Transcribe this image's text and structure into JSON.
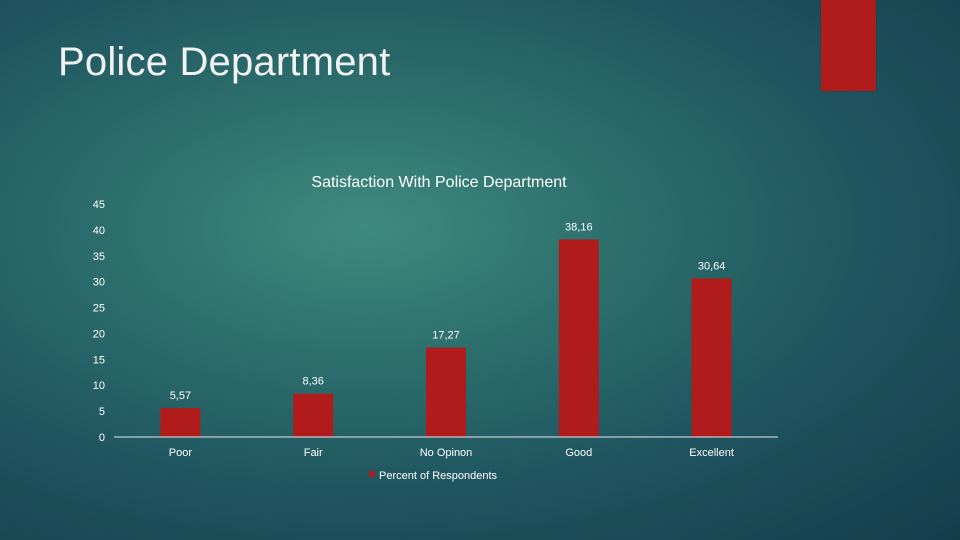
{
  "slide": {
    "title": "Police Department"
  },
  "colors": {
    "accent": "#b01c1c",
    "bar": "#b01c1c",
    "text": "#ffffff",
    "axis": "#e8e8e8"
  },
  "chart_data": {
    "type": "bar",
    "title": "Satisfaction With Police Department",
    "categories": [
      "Poor",
      "Fair",
      "No Opinon",
      "Good",
      "Excellent"
    ],
    "series": [
      {
        "name": "Percent of Respondents",
        "values": [
          5.57,
          8.36,
          17.27,
          38.16,
          30.64
        ]
      }
    ],
    "data_labels": [
      "5,57",
      "8,36",
      "17,27",
      "38,16",
      "30,64"
    ],
    "ylim": [
      0,
      45
    ],
    "yticks": [
      0,
      5,
      10,
      15,
      20,
      25,
      30,
      35,
      40,
      45
    ],
    "xlabel": "",
    "ylabel": "",
    "legend_position": "bottom",
    "grid": false
  }
}
